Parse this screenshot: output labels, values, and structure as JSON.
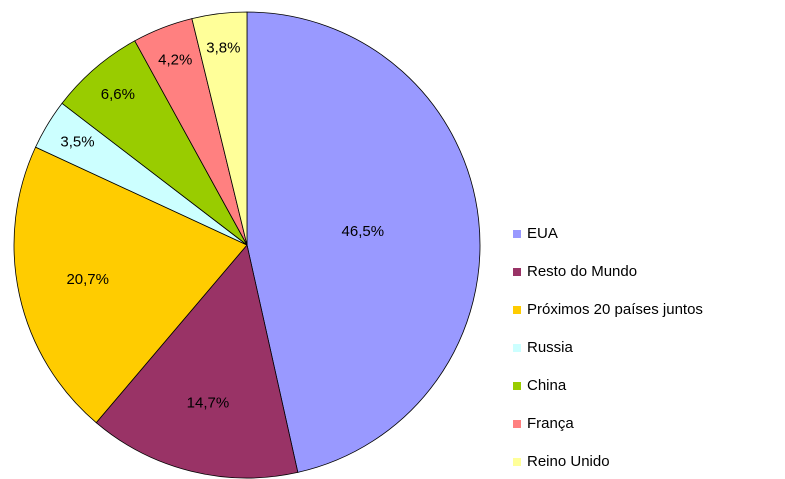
{
  "chart_data": {
    "type": "pie",
    "categories": [
      "EUA",
      "Resto do Mundo",
      "Próximos 20 países juntos",
      "Russia",
      "China",
      "França",
      "Reino Unido"
    ],
    "values": [
      46.5,
      14.7,
      20.7,
      3.5,
      6.6,
      4.2,
      3.8
    ],
    "value_labels": [
      "46,5%",
      "14,7%",
      "20,7%",
      "3,5%",
      "6,6%",
      "4,2%",
      "3,8%"
    ],
    "colors": [
      "#9999ff",
      "#993366",
      "#ffcc00",
      "#ccffff",
      "#99cc00",
      "#ff8080",
      "#ffff99"
    ],
    "legend": "right"
  }
}
